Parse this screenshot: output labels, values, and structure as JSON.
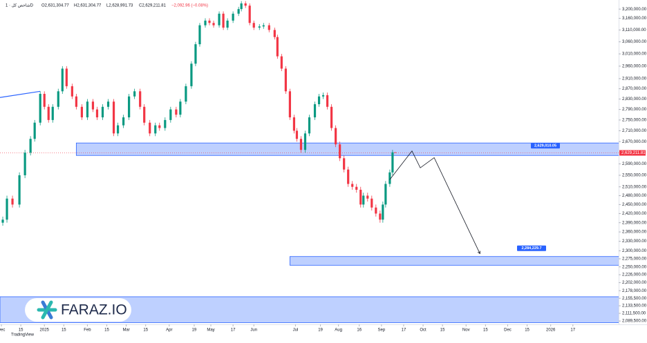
{
  "chart_data": {
    "type": "candlestick",
    "header": {
      "symbol": "شاخص کل · 1D",
      "ohlc": [
        "O2,631,304.77",
        "H2,631,304.77",
        "L2,628,991.73",
        "C2,629,211.81"
      ],
      "change": "−2,092.96 (−0.08%)"
    },
    "log_scale": true,
    "up_color": "#089981",
    "down_color": "#f23645",
    "x": [
      "2024-12-02",
      "2024-12-05",
      "2024-12-09",
      "2024-12-14",
      "2024-12-18",
      "2024-12-22",
      "2024-12-25",
      "2024-12-29",
      "2025-01-01",
      "2025-01-04",
      "2025-01-07",
      "2025-01-11",
      "2025-01-14",
      "2025-01-17",
      "2025-01-21",
      "2025-01-24",
      "2025-01-28",
      "2025-02-01",
      "2025-02-05",
      "2025-02-08",
      "2025-02-12",
      "2025-02-16",
      "2025-02-20",
      "2025-02-23",
      "2025-02-27",
      "2025-03-03",
      "2025-03-07",
      "2025-03-11",
      "2025-03-14",
      "2025-03-18",
      "2025-03-22",
      "2025-03-25",
      "2025-03-29",
      "2025-04-02",
      "2025-04-06",
      "2025-04-09",
      "2025-04-13",
      "2025-04-17",
      "2025-04-20",
      "2025-04-23",
      "2025-04-27",
      "2025-04-30",
      "2025-05-03",
      "2025-05-07",
      "2025-05-10",
      "2025-05-13",
      "2025-05-17",
      "2025-05-21",
      "2025-05-23",
      "2025-05-26",
      "2025-05-29",
      "2025-06-01",
      "2025-06-05",
      "2025-06-08",
      "2025-06-12",
      "2025-06-16",
      "2025-06-18",
      "2025-06-21",
      "2025-06-24",
      "2025-06-27",
      "2025-06-30",
      "2025-07-02",
      "2025-07-05",
      "2025-07-08",
      "2025-07-11",
      "2025-07-15",
      "2025-07-18",
      "2025-07-21",
      "2025-07-24",
      "2025-07-27",
      "2025-07-30",
      "2025-08-02",
      "2025-08-05",
      "2025-08-08",
      "2025-08-11",
      "2025-08-14",
      "2025-08-17",
      "2025-08-19",
      "2025-08-22",
      "2025-08-25",
      "2025-08-28",
      "2025-08-31",
      "2025-09-02",
      "2025-09-04",
      "2025-09-07",
      "2025-09-09",
      "2025-09-11"
    ],
    "open": [
      2390000,
      2400000,
      2470000,
      2450000,
      2550000,
      2630000,
      2680000,
      2740000,
      2850000,
      2800000,
      2750000,
      2800000,
      2860000,
      2950000,
      2880000,
      2840000,
      2800000,
      2760000,
      2820000,
      2790000,
      2760000,
      2800000,
      2820000,
      2700000,
      2730000,
      2760000,
      2840000,
      2860000,
      2800000,
      2740000,
      2700000,
      2730000,
      2720000,
      2750000,
      2790000,
      2770000,
      2820000,
      2880000,
      2970000,
      3050000,
      3130000,
      3150000,
      3140000,
      3130000,
      3180000,
      3120000,
      3150000,
      3180000,
      3200000,
      3225000,
      3215000,
      3140000,
      3120000,
      3125000,
      3130000,
      3110000,
      3080000,
      3000000,
      2950000,
      2860000,
      2760000,
      2710000,
      2680000,
      2640000,
      2700000,
      2760000,
      2810000,
      2840000,
      2845000,
      2800000,
      2720000,
      2660000,
      2610000,
      2570000,
      2520000,
      2510000,
      2500000,
      2450000,
      2480000,
      2470000,
      2440000,
      2420000,
      2400000,
      2450000,
      2520000,
      2560000,
      2631304.77
    ],
    "high": [
      2410000,
      2480000,
      2480000,
      2560000,
      2640000,
      2690000,
      2750000,
      2860000,
      2860000,
      2810000,
      2810000,
      2870000,
      2960000,
      2960000,
      2890000,
      2850000,
      2810000,
      2830000,
      2830000,
      2800000,
      2810000,
      2830000,
      2830000,
      2740000,
      2770000,
      2850000,
      2870000,
      2870000,
      2810000,
      2750000,
      2740000,
      2740000,
      2760000,
      2800000,
      2800000,
      2830000,
      2890000,
      2980000,
      3060000,
      3140000,
      3160000,
      3160000,
      3150000,
      3190000,
      3190000,
      3160000,
      3190000,
      3210000,
      3235000,
      3235000,
      3225000,
      3150000,
      3135000,
      3140000,
      3140000,
      3120000,
      3090000,
      3010000,
      2960000,
      2870000,
      2770000,
      2720000,
      2690000,
      2710000,
      2770000,
      2820000,
      2850000,
      2855000,
      2855000,
      2810000,
      2730000,
      2670000,
      2620000,
      2580000,
      2530000,
      2520000,
      2510000,
      2490000,
      2490000,
      2480000,
      2450000,
      2430000,
      2460000,
      2530000,
      2570000,
      2640000,
      2631304.77
    ],
    "low": [
      2380000,
      2390000,
      2440000,
      2440000,
      2540000,
      2620000,
      2670000,
      2730000,
      2790000,
      2740000,
      2740000,
      2790000,
      2850000,
      2870000,
      2830000,
      2790000,
      2750000,
      2750000,
      2780000,
      2750000,
      2750000,
      2790000,
      2690000,
      2690000,
      2720000,
      2750000,
      2830000,
      2790000,
      2730000,
      2690000,
      2690000,
      2710000,
      2710000,
      2740000,
      2760000,
      2760000,
      2810000,
      2870000,
      2960000,
      3040000,
      3120000,
      3130000,
      3120000,
      3120000,
      3110000,
      3110000,
      3140000,
      3170000,
      3190000,
      3205000,
      3130000,
      3110000,
      3110000,
      3115000,
      3100000,
      3070000,
      2990000,
      2940000,
      2850000,
      2750000,
      2700000,
      2670000,
      2630000,
      2630000,
      2690000,
      2750000,
      2800000,
      2830000,
      2790000,
      2710000,
      2650000,
      2600000,
      2560000,
      2510000,
      2500000,
      2490000,
      2440000,
      2440000,
      2460000,
      2430000,
      2410000,
      2390000,
      2390000,
      2440000,
      2510000,
      2550000,
      2628991.73
    ],
    "close": [
      2400000,
      2470000,
      2450000,
      2550000,
      2630000,
      2680000,
      2740000,
      2850000,
      2800000,
      2750000,
      2800000,
      2860000,
      2950000,
      2880000,
      2840000,
      2800000,
      2760000,
      2820000,
      2790000,
      2760000,
      2800000,
      2820000,
      2700000,
      2730000,
      2760000,
      2840000,
      2860000,
      2800000,
      2740000,
      2700000,
      2730000,
      2720000,
      2750000,
      2790000,
      2770000,
      2820000,
      2880000,
      2970000,
      3050000,
      3130000,
      3150000,
      3140000,
      3130000,
      3180000,
      3120000,
      3150000,
      3180000,
      3200000,
      3225000,
      3215000,
      3140000,
      3120000,
      3125000,
      3130000,
      3110000,
      3080000,
      3000000,
      2950000,
      2860000,
      2760000,
      2710000,
      2680000,
      2640000,
      2700000,
      2760000,
      2810000,
      2840000,
      2845000,
      2800000,
      2720000,
      2660000,
      2610000,
      2570000,
      2520000,
      2510000,
      2500000,
      2450000,
      2480000,
      2470000,
      2440000,
      2420000,
      2400000,
      2450000,
      2520000,
      2560000,
      2631304.77,
      2629211.81
    ],
    "last_price_label": "2,629,211.81",
    "xlim": [
      "2024-11-30",
      "2026-02-19"
    ],
    "xticks": [
      {
        "value": "2024-12-01",
        "label": "Dec"
      },
      {
        "value": "2024-12-15",
        "label": "15"
      },
      {
        "value": "2025-01-01",
        "label": "2025"
      },
      {
        "value": "2025-01-15",
        "label": "15"
      },
      {
        "value": "2025-02-01",
        "label": "Feb"
      },
      {
        "value": "2025-02-15",
        "label": "15"
      },
      {
        "value": "2025-03-01",
        "label": "Mar"
      },
      {
        "value": "2025-03-15",
        "label": "15"
      },
      {
        "value": "2025-04-01",
        "label": "Apr"
      },
      {
        "value": "2025-04-19",
        "label": "19"
      },
      {
        "value": "2025-05-01",
        "label": "May"
      },
      {
        "value": "2025-05-17",
        "label": "17"
      },
      {
        "value": "2025-06-01",
        "label": "Jun"
      },
      {
        "value": "2025-07-01",
        "label": "Jul"
      },
      {
        "value": "2025-07-19",
        "label": "19"
      },
      {
        "value": "2025-08-01",
        "label": "Aug"
      },
      {
        "value": "2025-08-16",
        "label": "16"
      },
      {
        "value": "2025-09-01",
        "label": "Sep"
      },
      {
        "value": "2025-09-17",
        "label": "17"
      },
      {
        "value": "2025-10-01",
        "label": "Oct"
      },
      {
        "value": "2025-10-15",
        "label": "15"
      },
      {
        "value": "2025-11-01",
        "label": "Nov"
      },
      {
        "value": "2025-11-15",
        "label": "15"
      },
      {
        "value": "2025-12-01",
        "label": "Dec"
      },
      {
        "value": "2025-12-15",
        "label": "15"
      },
      {
        "value": "2026-01-01",
        "label": "2026"
      },
      {
        "value": "2026-01-17",
        "label": "17"
      }
    ],
    "ylim": [
      2080000,
      3240000
    ],
    "yticks": [
      {
        "value": 3200000,
        "label": "3,200,000.00"
      },
      {
        "value": 3160000,
        "label": "3,160,000.00"
      },
      {
        "value": 3110000,
        "label": "3,110,000.00"
      },
      {
        "value": 3060000,
        "label": "3,060,000.00"
      },
      {
        "value": 3010000,
        "label": "3,010,000.00"
      },
      {
        "value": 2960000,
        "label": "2,960,000.00"
      },
      {
        "value": 2910000,
        "label": "2,910,000.00"
      },
      {
        "value": 2870000,
        "label": "2,870,000.00"
      },
      {
        "value": 2830000,
        "label": "2,830,000.00"
      },
      {
        "value": 2790000,
        "label": "2,790,000.00"
      },
      {
        "value": 2750000,
        "label": "2,750,000.00"
      },
      {
        "value": 2710000,
        "label": "2,710,000.00"
      },
      {
        "value": 2670000,
        "label": "2,670,000.00"
      },
      {
        "value": 2590000,
        "label": "2,590,000.00"
      },
      {
        "value": 2550000,
        "label": "2,550,000.00"
      },
      {
        "value": 2510000,
        "label": "2,510,000.00"
      },
      {
        "value": 2480000,
        "label": "2,480,000.00"
      },
      {
        "value": 2450000,
        "label": "2,450,000.00"
      },
      {
        "value": 2420000,
        "label": "2,420,000.00"
      },
      {
        "value": 2390000,
        "label": "2,390,000.00"
      },
      {
        "value": 2360000,
        "label": "2,360,000.00"
      },
      {
        "value": 2330000,
        "label": "2,330,000.00"
      },
      {
        "value": 2300000,
        "label": "2,300,000.00"
      },
      {
        "value": 2275000,
        "label": "2,275,000.00"
      },
      {
        "value": 2250000,
        "label": "2,250,000.00"
      },
      {
        "value": 2226000,
        "label": "2,226,000.00"
      },
      {
        "value": 2202000,
        "label": "2,202,000.00"
      },
      {
        "value": 2178000,
        "label": "2,178,000.00"
      },
      {
        "value": 2155500,
        "label": "2,155,500.00"
      },
      {
        "value": 2133500,
        "label": "2,133,500.00"
      },
      {
        "value": 2111500,
        "label": "2,111,500.00"
      },
      {
        "value": 2089500,
        "label": "2,089,500.00"
      }
    ],
    "zones": [
      {
        "start": "2025-01-24",
        "low": 2620000,
        "high": 2665000,
        "label": "2,629,010.05",
        "color": "#2962ff"
      },
      {
        "start": "2025-06-27",
        "low": 2255000,
        "high": 2282000,
        "label": "2,284,229.7",
        "color": "#2962ff"
      },
      {
        "start": "2024-11-30",
        "low": 2085000,
        "high": 2160000,
        "color": "#2962ff"
      }
    ],
    "trendline": {
      "x": [
        "2024-11-30",
        "2024-12-29"
      ],
      "values": [
        2836000,
        2860000
      ],
      "color": "#2962ff"
    },
    "projection": {
      "x": [
        "2025-09-07",
        "2025-09-23",
        "2025-09-29",
        "2025-10-09",
        "2025-11-11"
      ],
      "values": [
        2535000,
        2636000,
        2576000,
        2612000,
        2291000
      ],
      "color": "#131722"
    },
    "watermark": "FARAZ.IO",
    "footer": "TradingView"
  }
}
